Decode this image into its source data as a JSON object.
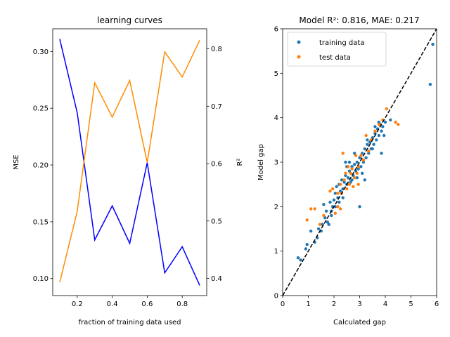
{
  "chart_data": [
    {
      "type": "line",
      "title": "learning curves",
      "xlabel": "fraction of training data used",
      "ylabel_left": "MSE",
      "ylabel_right": "R²",
      "xlim": [
        0.06,
        0.94
      ],
      "ylim_left": [
        0.085,
        0.32
      ],
      "ylim_right": [
        0.37,
        0.835
      ],
      "x_ticks": [
        0.2,
        0.4,
        0.6,
        0.8
      ],
      "y_ticks_left": [
        0.1,
        0.15,
        0.2,
        0.25,
        0.3
      ],
      "y_ticks_right": [
        0.4,
        0.5,
        0.6,
        0.7,
        0.8
      ],
      "x": [
        0.1,
        0.2,
        0.3,
        0.4,
        0.5,
        0.6,
        0.7,
        0.8,
        0.9
      ],
      "series": [
        {
          "name": "MSE",
          "axis": "left",
          "color": "#0000ff",
          "values": [
            0.311,
            0.246,
            0.134,
            0.164,
            0.131,
            0.202,
            0.105,
            0.128,
            0.094
          ]
        },
        {
          "name": "R²",
          "axis": "right",
          "color": "#ff8c00",
          "values": [
            0.393,
            0.517,
            0.741,
            0.681,
            0.745,
            0.602,
            0.795,
            0.751,
            0.815
          ]
        }
      ]
    },
    {
      "type": "scatter",
      "title": "Model R²: 0.816, MAE: 0.217",
      "xlabel": "Calculated gap",
      "ylabel": "Model gap",
      "xlim": [
        0,
        6
      ],
      "ylim": [
        0,
        6
      ],
      "x_ticks": [
        0,
        1,
        2,
        3,
        4,
        5,
        6
      ],
      "y_ticks": [
        0,
        1,
        2,
        3,
        4,
        5,
        6
      ],
      "reference_line": {
        "from": [
          0,
          0
        ],
        "to": [
          6,
          6
        ],
        "style": "dashed",
        "color": "#000000"
      },
      "legend_position": "top-left",
      "series": [
        {
          "name": "training data",
          "color": "#1f77b4",
          "points": [
            [
              0.6,
              0.85
            ],
            [
              0.7,
              0.8
            ],
            [
              0.9,
              1.05
            ],
            [
              0.95,
              1.15
            ],
            [
              1.1,
              1.45
            ],
            [
              1.25,
              1.2
            ],
            [
              1.35,
              1.3
            ],
            [
              1.4,
              1.5
            ],
            [
              1.5,
              1.45
            ],
            [
              1.55,
              1.6
            ],
            [
              1.6,
              2.05
            ],
            [
              1.65,
              1.75
            ],
            [
              1.7,
              1.9
            ],
            [
              1.75,
              1.65
            ],
            [
              1.8,
              1.6
            ],
            [
              1.85,
              2.1
            ],
            [
              1.9,
              1.9
            ],
            [
              1.95,
              2.0
            ],
            [
              2.0,
              2.15
            ],
            [
              2.05,
              2.3
            ],
            [
              2.1,
              2.45
            ],
            [
              2.15,
              2.2
            ],
            [
              2.2,
              2.5
            ],
            [
              2.25,
              2.35
            ],
            [
              2.3,
              2.6
            ],
            [
              2.35,
              2.4
            ],
            [
              2.4,
              2.55
            ],
            [
              2.45,
              2.7
            ],
            [
              2.5,
              2.5
            ],
            [
              2.55,
              2.65
            ],
            [
              2.6,
              2.8
            ],
            [
              2.65,
              2.55
            ],
            [
              2.7,
              2.9
            ],
            [
              2.75,
              2.7
            ],
            [
              2.8,
              2.95
            ],
            [
              2.85,
              2.8
            ],
            [
              2.9,
              3.0
            ],
            [
              2.95,
              2.85
            ],
            [
              3.0,
              3.1
            ],
            [
              3.0,
              2.0
            ],
            [
              3.05,
              2.9
            ],
            [
              3.1,
              3.2
            ],
            [
              3.15,
              3.0
            ],
            [
              3.2,
              3.3
            ],
            [
              3.25,
              3.1
            ],
            [
              3.3,
              3.4
            ],
            [
              3.35,
              3.2
            ],
            [
              3.4,
              3.45
            ],
            [
              3.45,
              3.3
            ],
            [
              3.5,
              3.55
            ],
            [
              3.55,
              3.4
            ],
            [
              3.6,
              3.65
            ],
            [
              3.65,
              3.5
            ],
            [
              3.7,
              3.75
            ],
            [
              3.75,
              3.6
            ],
            [
              3.8,
              3.85
            ],
            [
              3.85,
              3.2
            ],
            [
              3.9,
              3.8
            ],
            [
              3.95,
              3.6
            ],
            [
              4.0,
              3.9
            ],
            [
              4.2,
              3.95
            ],
            [
              5.75,
              4.75
            ],
            [
              5.85,
              5.65
            ],
            [
              2.5,
              2.9
            ],
            [
              2.6,
              3.0
            ],
            [
              2.7,
              2.6
            ],
            [
              2.8,
              3.2
            ],
            [
              2.9,
              2.65
            ],
            [
              3.1,
              2.75
            ],
            [
              3.2,
              2.6
            ],
            [
              2.35,
              2.2
            ],
            [
              2.2,
              2.1
            ],
            [
              2.05,
              2.0
            ],
            [
              1.9,
              1.8
            ],
            [
              2.45,
              3.0
            ],
            [
              3.3,
              3.5
            ],
            [
              3.5,
              3.3
            ],
            [
              3.6,
              3.8
            ],
            [
              3.75,
              3.9
            ],
            [
              3.85,
              3.7
            ]
          ]
        },
        {
          "name": "test data",
          "color": "#ff7f0e",
          "points": [
            [
              0.95,
              1.7
            ],
            [
              1.1,
              1.95
            ],
            [
              1.25,
              1.95
            ],
            [
              1.45,
              1.6
            ],
            [
              1.6,
              1.8
            ],
            [
              1.85,
              2.35
            ],
            [
              1.95,
              2.4
            ],
            [
              2.05,
              1.85
            ],
            [
              2.15,
              2.0
            ],
            [
              2.25,
              1.95
            ],
            [
              2.3,
              2.3
            ],
            [
              2.35,
              3.2
            ],
            [
              2.45,
              2.75
            ],
            [
              2.5,
              2.4
            ],
            [
              2.55,
              2.9
            ],
            [
              2.6,
              2.5
            ],
            [
              2.65,
              2.75
            ],
            [
              2.7,
              2.85
            ],
            [
              2.75,
              2.45
            ],
            [
              2.8,
              2.65
            ],
            [
              2.85,
              3.15
            ],
            [
              2.9,
              2.75
            ],
            [
              2.95,
              2.9
            ],
            [
              3.05,
              3.15
            ],
            [
              3.15,
              3.05
            ],
            [
              3.25,
              3.6
            ],
            [
              3.35,
              3.25
            ],
            [
              3.45,
              3.5
            ],
            [
              3.6,
              3.7
            ],
            [
              3.75,
              3.85
            ],
            [
              3.9,
              3.95
            ],
            [
              4.05,
              4.2
            ],
            [
              4.4,
              3.9
            ],
            [
              4.5,
              3.85
            ],
            [
              2.15,
              2.3
            ],
            [
              2.25,
              2.5
            ],
            [
              2.4,
              2.6
            ],
            [
              2.95,
              2.5
            ]
          ]
        }
      ]
    }
  ]
}
